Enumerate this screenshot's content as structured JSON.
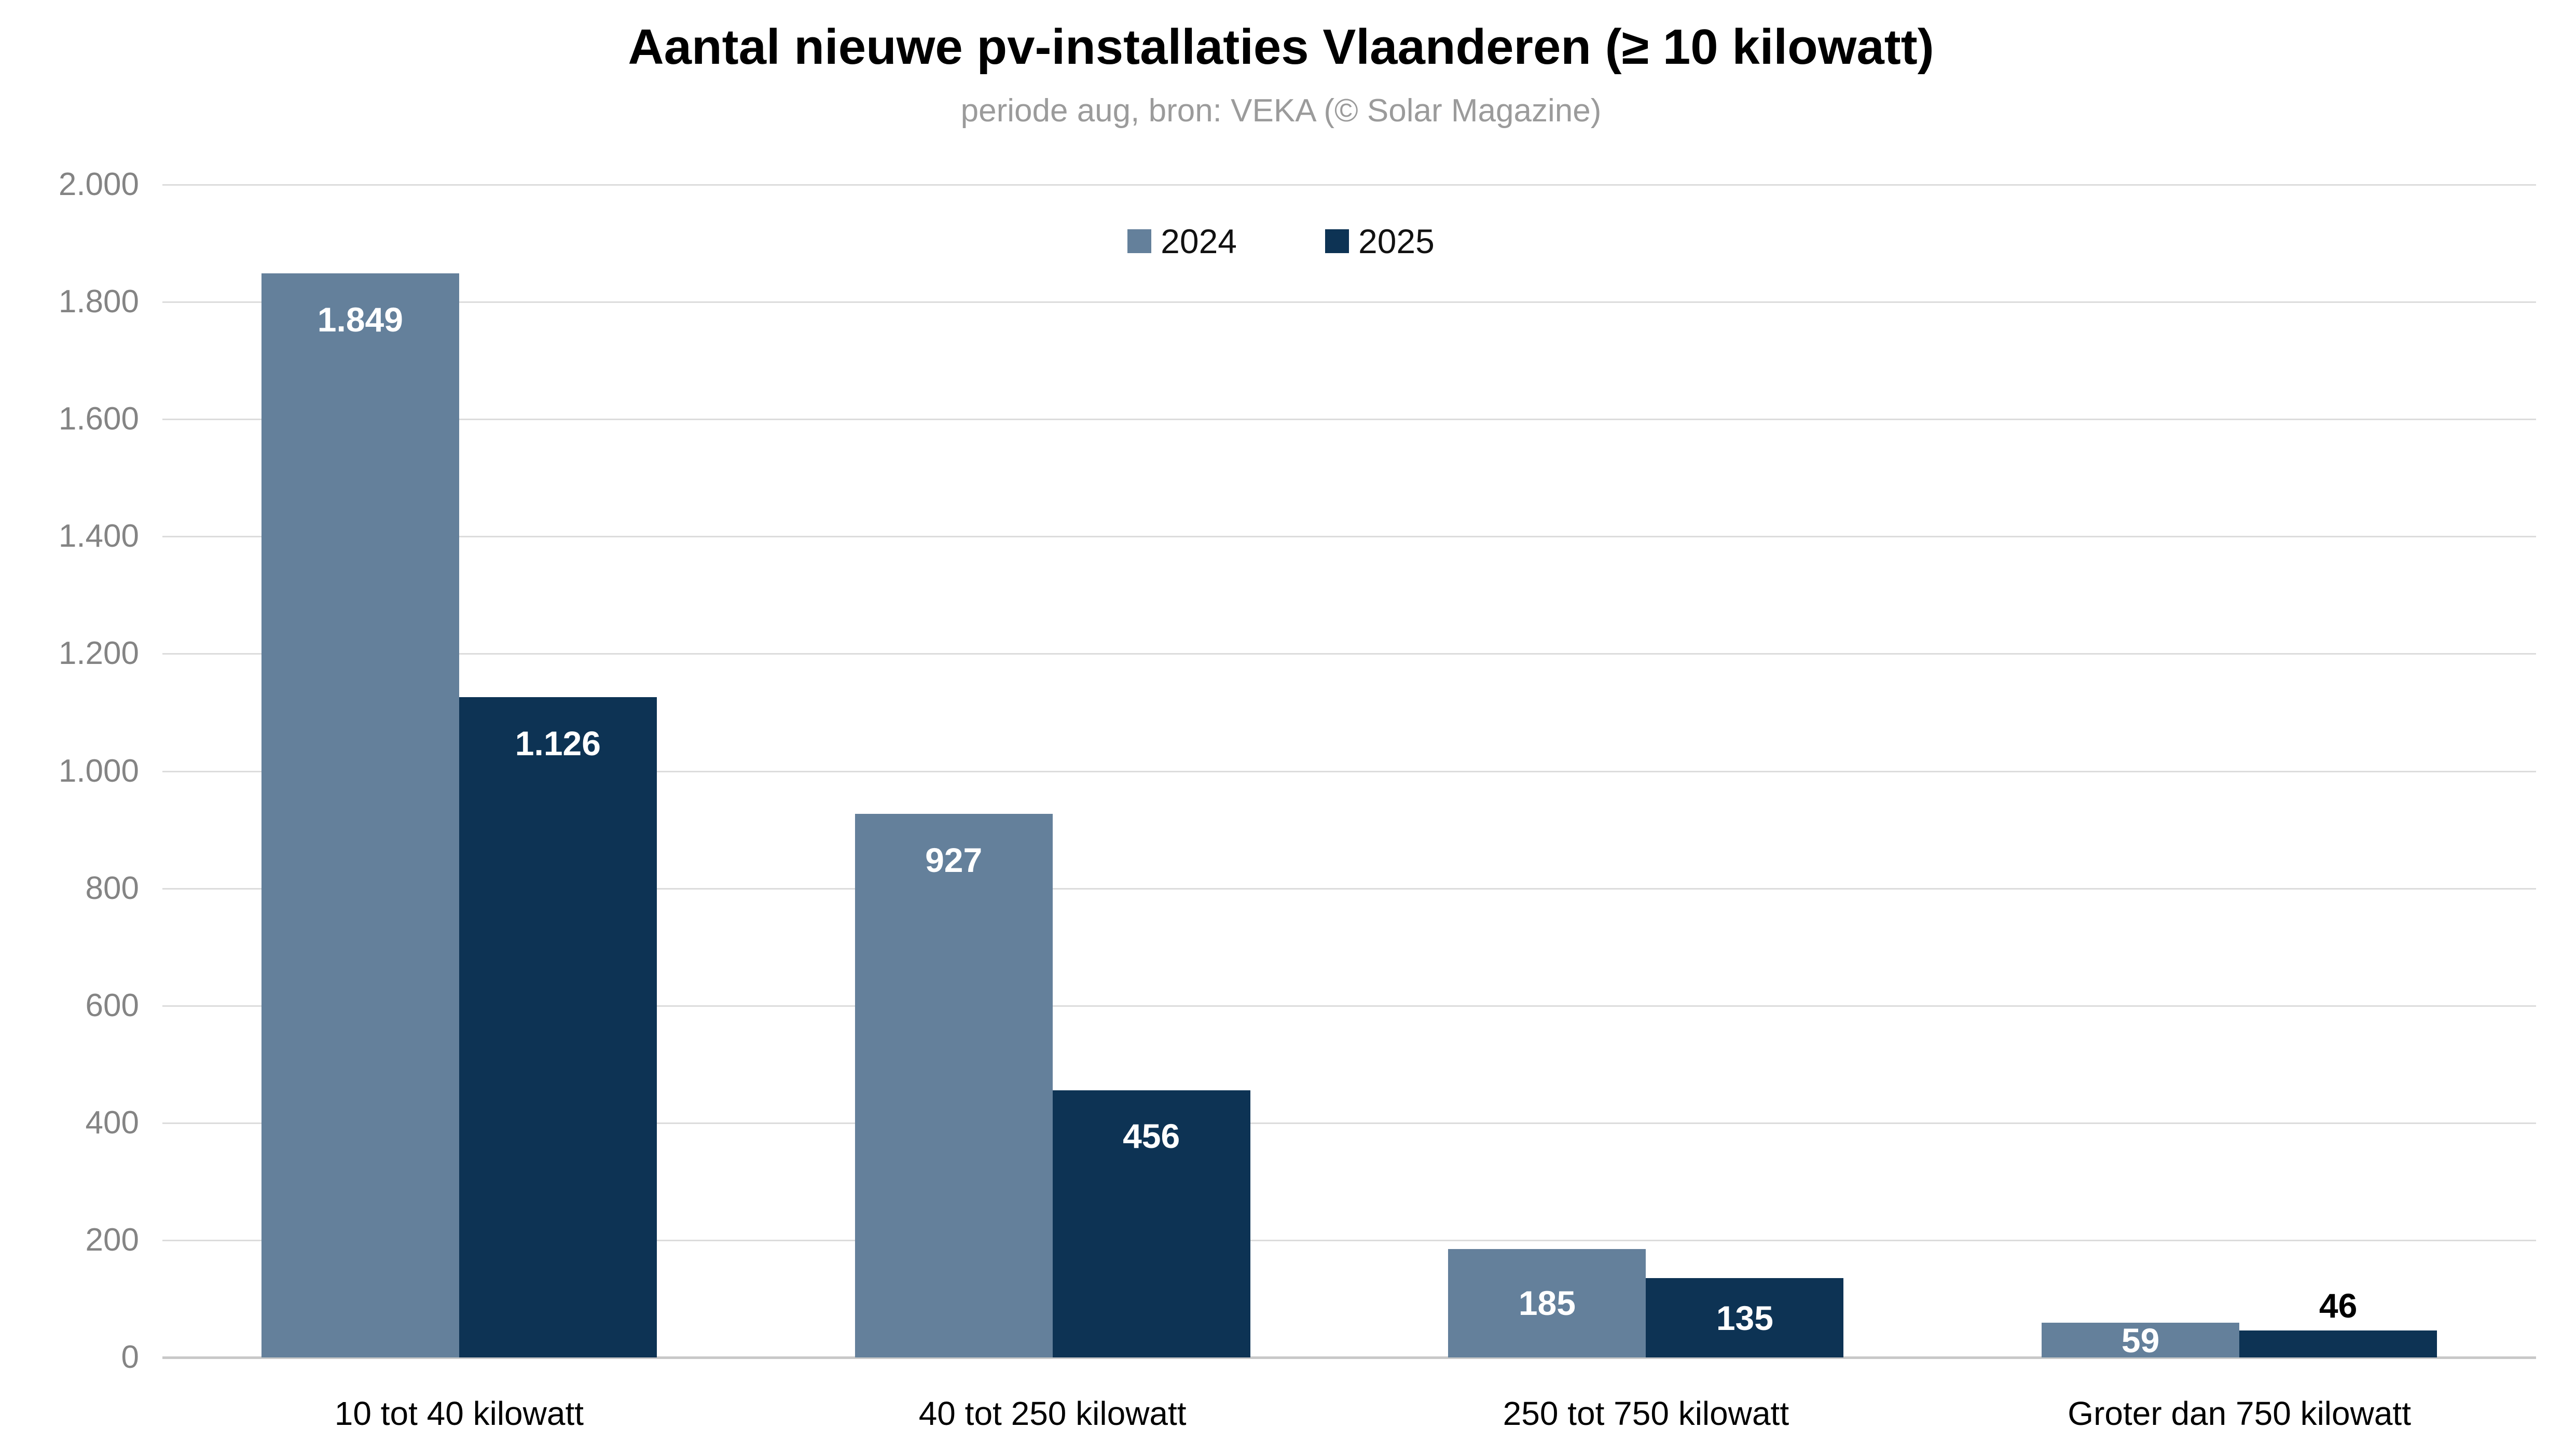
{
  "chart_data": {
    "type": "bar",
    "title": "Aantal nieuwe pv-installaties Vlaanderen (≥ 10 kilowatt)",
    "subtitle": "periode aug, bron: VEKA (© Solar Magazine)",
    "categories": [
      "10 tot 40 kilowatt",
      "40 tot 250 kilowatt",
      "250 tot 750 kilowatt",
      "Groter dan 750 kilowatt"
    ],
    "series": [
      {
        "name": "2024",
        "color": "#64809b",
        "values": [
          1849,
          927,
          185,
          59
        ],
        "labels": [
          "1.849",
          "927",
          "185",
          "59"
        ]
      },
      {
        "name": "2025",
        "color": "#0d3354",
        "values": [
          1126,
          456,
          135,
          46
        ],
        "labels": [
          "1.126",
          "456",
          "135",
          "46"
        ]
      }
    ],
    "xlabel": "",
    "ylabel": "",
    "ylim": [
      0,
      2000
    ],
    "ytick_interval": 200,
    "yticks": [
      "0",
      "200",
      "400",
      "600",
      "800",
      "1.000",
      "1.200",
      "1.400",
      "1.600",
      "1.800",
      "2.000"
    ],
    "grid": true,
    "legend_position": "top-center",
    "colors": {
      "background": "#ffffff",
      "title_text": "#000000",
      "subtitle_text": "#9b9b9b",
      "axis_tick_text": "#848484",
      "category_text": "#000000",
      "gridline": "#dcdcdc",
      "baseline": "#c8c8c8",
      "bar_label_inside": "#ffffff",
      "bar_label_outside": "#000000"
    }
  }
}
